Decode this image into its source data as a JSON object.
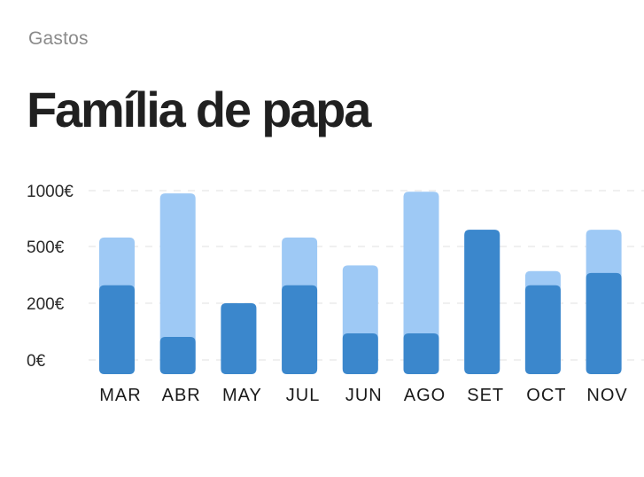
{
  "header": {
    "subtitle": "Gastos",
    "title": "Família de papa"
  },
  "colors": {
    "total": "#9ec9f5",
    "base": "#3b87cc",
    "grid": "#e2e2e2",
    "text": "#1f1f1f",
    "subtitle": "#8a8a8a"
  },
  "chart_data": {
    "type": "bar",
    "stacked": true,
    "title": "Família de papa",
    "subtitle": "Gastos",
    "categories": [
      "MAR",
      "ABR",
      "MAY",
      "JUL",
      "JUN",
      "AGO",
      "SET",
      "OCT",
      "NOV"
    ],
    "series": [
      {
        "values": [
          295,
          105,
          200,
          295,
          115,
          115,
          650,
          295,
          360
        ]
      },
      {
        "values": [
          580,
          975,
          200,
          580,
          400,
          990,
          650,
          370,
          650
        ]
      }
    ],
    "yticks": [
      {
        "value": 0,
        "label": "0€"
      },
      {
        "value": 200,
        "label": "200€"
      },
      {
        "value": 500,
        "label": "500€"
      },
      {
        "value": 1000,
        "label": "1000€"
      }
    ],
    "grid": true,
    "legend": "none"
  }
}
